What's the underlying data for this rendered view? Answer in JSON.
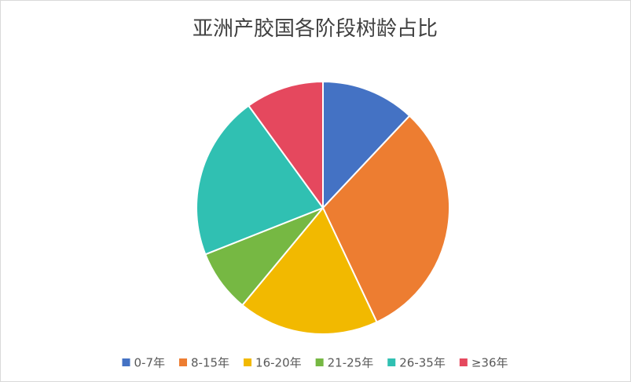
{
  "chart_data": {
    "type": "pie",
    "title": "亚洲产胶国各阶段树龄占比",
    "categories": [
      "0-7年",
      "8-15年",
      "16-20年",
      "21-25年",
      "26-35年",
      "≥36年"
    ],
    "values": [
      12,
      31,
      18,
      8,
      21,
      10
    ],
    "colors": [
      "#4472c4",
      "#ed7d31",
      "#f2b900",
      "#76b843",
      "#30c0b2",
      "#e5485e"
    ],
    "legend": "bottom"
  }
}
